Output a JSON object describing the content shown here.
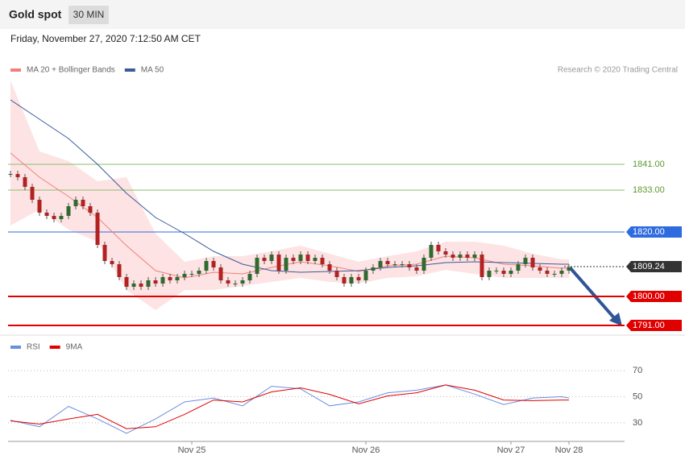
{
  "chart_data": [
    {
      "type": "candlestick",
      "title": "Gold spot",
      "subtitle": "30 MIN",
      "date": "Friday, November 27, 2020 7:12:50 AM CET",
      "source": "Research © 2020 Trading Central",
      "categories": [
        null,
        null,
        null,
        null,
        null,
        null,
        null,
        null,
        null,
        null,
        null,
        null,
        null,
        null,
        null,
        null,
        null,
        null,
        null,
        null,
        null,
        null,
        null,
        null,
        null,
        "Nov 25",
        null,
        null,
        null,
        null,
        null,
        null,
        null,
        null,
        null,
        null,
        null,
        null,
        null,
        null,
        null,
        null,
        null,
        null,
        null,
        null,
        null,
        null,
        null,
        "Nov 26",
        null,
        null,
        null,
        null,
        null,
        null,
        null,
        null,
        null,
        null,
        null,
        null,
        null,
        null,
        null,
        null,
        null,
        null,
        null,
        "Nov 27",
        null,
        null,
        null,
        null,
        null,
        null,
        null,
        "Nov 28"
      ],
      "close": [
        1838,
        1837,
        1834,
        1830,
        1826,
        1825,
        1824,
        1825,
        1828,
        1830,
        1828,
        1826,
        1816,
        1811,
        1810,
        1806,
        1803,
        1804,
        1803,
        1805,
        1804,
        1806,
        1805,
        1806,
        1807,
        1807,
        1808,
        1811,
        1809,
        1805,
        1804,
        1804,
        1805,
        1807,
        1812,
        1811,
        1813,
        1808,
        1812,
        1811,
        1813,
        1811,
        1812,
        1810,
        1808,
        1806,
        1804,
        1806,
        1805,
        1808,
        1809,
        1811,
        1810,
        1810,
        1810,
        1809,
        1808,
        1812,
        1816,
        1814,
        1813,
        1812,
        1813,
        1812,
        1813,
        1806,
        1808,
        1808,
        1807,
        1808,
        1810,
        1812,
        1809,
        1808,
        1807,
        1807,
        1808,
        1809
      ],
      "up_color": "#2f6b2f",
      "down_color": "#b22222",
      "xlim": [
        0,
        77
      ],
      "ylim": [
        1788,
        1868
      ],
      "series": [
        {
          "name": "MA 20 + Bollinger Bands",
          "color": "#f08080",
          "band_color": "#fde3e3",
          "x": [
            0,
            4,
            8,
            12,
            16,
            20,
            24,
            28,
            32,
            36,
            40,
            44,
            48,
            52,
            56,
            60,
            64,
            68,
            72,
            76,
            77
          ],
          "values": [
            1844.5,
            1837,
            1831,
            1824.5,
            1815.75,
            1808,
            1805.75,
            1807.5,
            1807,
            1809,
            1810.75,
            1809.5,
            1807.75,
            1809.5,
            1810,
            1812.5,
            1812,
            1810,
            1809.5,
            1808.75,
            1808.75
          ],
          "upper": [
            1867,
            1845,
            1842,
            1835.75,
            1837,
            1819.5,
            1810.75,
            1812.5,
            1812.5,
            1814,
            1815.75,
            1813.25,
            1810.75,
            1812.5,
            1814,
            1817,
            1817,
            1815.75,
            1813.25,
            1811.5,
            1811.5
          ],
          "lower": [
            1822,
            1827,
            1820.75,
            1817,
            1802,
            1795.75,
            1802,
            1802,
            1803.25,
            1804.5,
            1805.75,
            1804.5,
            1804,
            1805.75,
            1806.25,
            1808.25,
            1807,
            1805.75,
            1805.75,
            1805.75,
            1805.75
          ]
        },
        {
          "name": "MA 50",
          "color": "#3a5a9a",
          "x": [
            0,
            4,
            8,
            12,
            16,
            20,
            24,
            28,
            32,
            36,
            40,
            44,
            48,
            52,
            56,
            60,
            64,
            68,
            72,
            76,
            77
          ],
          "values": [
            1861,
            1855,
            1849,
            1841,
            1832,
            1824.5,
            1819.5,
            1814,
            1810,
            1808,
            1807.5,
            1807.75,
            1808,
            1809,
            1809.5,
            1810.5,
            1810.75,
            1810.5,
            1810.25,
            1810,
            1810
          ]
        }
      ],
      "levels": [
        {
          "value": 1841,
          "label": "1841.00",
          "color": "#8bbf6a"
        },
        {
          "value": 1833,
          "label": "1833.00",
          "color": "#8bbf6a"
        },
        {
          "value": 1820,
          "label": "1820.00",
          "color": "#2f6be0"
        },
        {
          "value": 1809.24,
          "label": "1809.24",
          "color": "#333333",
          "dash": true
        },
        {
          "value": 1800,
          "label": "1800.00",
          "color": "#e00000"
        },
        {
          "value": 1791,
          "label": "1791.00",
          "color": "#e00000"
        }
      ]
    },
    {
      "type": "line",
      "xlim": [
        0,
        77
      ],
      "ylim": [
        17,
        83
      ],
      "yticks": [
        30,
        50,
        70
      ],
      "series": [
        {
          "name": "RSI",
          "color": "#6a8ee0",
          "x": [
            0,
            4,
            8,
            12,
            16,
            20,
            24,
            28,
            32,
            36,
            40,
            44,
            48,
            52,
            56,
            60,
            64,
            68,
            72,
            76,
            77
          ],
          "values": [
            32,
            27,
            42.6,
            33,
            22,
            33,
            46,
            49,
            43,
            58,
            56,
            43,
            46,
            53,
            55,
            59,
            52,
            44,
            49,
            50,
            49
          ]
        },
        {
          "name": "9MA",
          "color": "#e00000",
          "x": [
            0,
            4,
            8,
            12,
            16,
            20,
            24,
            28,
            32,
            36,
            40,
            44,
            48,
            52,
            56,
            60,
            64,
            68,
            72,
            76,
            77
          ],
          "values": [
            31.5,
            29,
            33,
            36.5,
            25.5,
            27,
            36.5,
            47.5,
            46,
            53.7,
            56.8,
            51.8,
            44.5,
            50.6,
            53,
            59,
            55,
            47.5,
            47,
            47.5,
            47.5
          ]
        }
      ]
    }
  ]
}
